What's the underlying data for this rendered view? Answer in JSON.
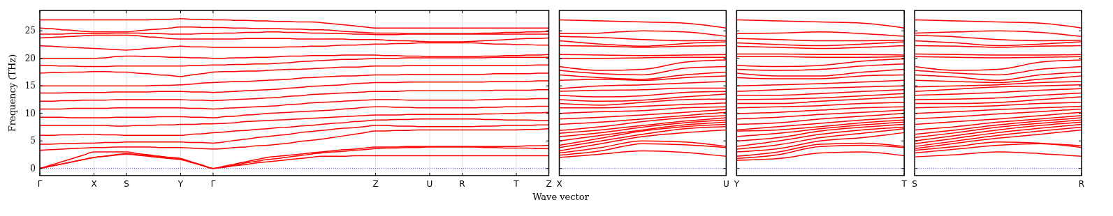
{
  "chart_data": [
    {
      "type": "line",
      "ylabel": "Frequency (THz)",
      "xlabel": "Wave vector",
      "color": "#ff0000",
      "grid": "x",
      "ylim": [
        -1.3,
        28.7
      ],
      "categories": [
        "Γ",
        null,
        null,
        null,
        null,
        "X",
        null,
        null,
        "S",
        null,
        null,
        null,
        null,
        "Y",
        null,
        null,
        "Γ",
        null,
        null,
        null,
        null,
        null,
        null,
        null,
        null,
        null,
        null,
        null,
        null,
        null,
        null,
        "Z",
        null,
        null,
        null,
        null,
        "U",
        null,
        null,
        "R",
        null,
        null,
        null,
        null,
        "T",
        null,
        null,
        "Z"
      ],
      "yticks": [
        0,
        5,
        10,
        15,
        20,
        25
      ],
      "ref_lines": [
        {
          "axis": "y",
          "value": 0,
          "color": "#0000ff",
          "line_style": "dotted"
        }
      ],
      "series": [
        {
          "values": [
            0,
            0.4,
            0.8,
            1.2,
            1.6,
            2.0,
            2.2,
            2.4,
            2.6,
            2.4,
            2.2,
            2.0,
            1.8,
            1.6,
            1.1,
            0.5,
            0,
            0.2,
            0.5,
            0.7,
            1.0,
            1.2,
            1.4,
            1.6,
            1.8,
            2.0,
            2.2,
            2.2,
            2.2,
            2.3,
            2.3,
            2.3,
            2.3,
            2.3,
            2.3,
            2.3,
            2.3,
            2.3,
            2.3,
            2.3,
            2.3,
            2.3,
            2.3,
            2.3,
            2.3,
            2.3,
            2.3,
            2.3
          ]
        },
        {
          "values": [
            0,
            0.4,
            0.8,
            1.2,
            1.6,
            2.0,
            2.2,
            2.5,
            2.7,
            2.5,
            2.3,
            2.2,
            2.0,
            1.8,
            1.2,
            0.6,
            0,
            0.3,
            0.6,
            1.0,
            1.3,
            1.6,
            1.8,
            2.1,
            2.3,
            2.6,
            2.8,
            3.0,
            3.1,
            3.3,
            3.4,
            3.6,
            3.7,
            3.7,
            3.8,
            3.8,
            3.9,
            3.9,
            3.9,
            3.9,
            3.9,
            3.8,
            3.8,
            3.7,
            3.7,
            3.7,
            3.6,
            3.6
          ]
        },
        {
          "values": [
            0,
            0.6,
            1.2,
            1.8,
            2.4,
            3.0,
            3.0,
            3.0,
            3.0,
            2.7,
            2.5,
            2.2,
            2.0,
            1.7,
            1.1,
            0.6,
            0,
            0.4,
            0.8,
            1.2,
            1.6,
            2.0,
            2.2,
            2.4,
            2.6,
            2.8,
            3.0,
            3.2,
            3.4,
            3.5,
            3.7,
            3.9,
            3.9,
            3.9,
            4.0,
            4.0,
            4.0,
            4.0,
            4.0,
            4.0,
            4.0,
            4.0,
            4.0,
            4.0,
            4.0,
            4.1,
            4.1,
            4.2
          ]
        },
        {
          "values": [
            3.3,
            3.4,
            3.5,
            3.6,
            3.7,
            3.8,
            3.8,
            3.9,
            3.9,
            3.9,
            3.9,
            3.8,
            3.8,
            3.8,
            3.7,
            3.6,
            3.5,
            3.6,
            3.8,
            3.9,
            4.1,
            4.2,
            4.4,
            4.6,
            4.9,
            5.1,
            5.3,
            5.6,
            5.9,
            6.2,
            6.5,
            6.8,
            6.8,
            6.9,
            6.9,
            7.0,
            7.0,
            7.0,
            7.0,
            7.0,
            7.0,
            7.0,
            7.0,
            7.0,
            7.0,
            7.1,
            7.1,
            7.2
          ]
        },
        {
          "values": [
            4.4,
            4.4,
            4.5,
            4.5,
            4.6,
            4.6,
            4.7,
            4.7,
            4.8,
            4.8,
            4.8,
            4.8,
            4.8,
            4.8,
            4.7,
            4.7,
            4.6,
            4.8,
            5.1,
            5.3,
            5.6,
            5.8,
            6.0,
            6.2,
            6.5,
            6.7,
            6.9,
            7.1,
            7.3,
            7.4,
            7.6,
            7.8,
            7.8,
            7.7,
            7.7,
            7.6,
            7.6,
            7.6,
            7.6,
            7.6,
            7.6,
            7.7,
            7.7,
            7.8,
            7.8,
            7.8,
            7.9,
            7.9
          ]
        },
        {
          "values": [
            6.0,
            6.0,
            6.1,
            6.1,
            6.2,
            6.2,
            6.1,
            6.1,
            6.0,
            6.0,
            6.0,
            6.0,
            6.0,
            6.0,
            6.2,
            6.3,
            6.5,
            6.6,
            6.8,
            6.9,
            7.1,
            7.2,
            7.4,
            7.5,
            7.7,
            7.8,
            8.0,
            8.2,
            8.3,
            8.5,
            8.6,
            8.8,
            8.8,
            8.9,
            8.9,
            9.0,
            9.0,
            9.0,
            9.0,
            9.0,
            9.0,
            8.9,
            8.9,
            8.8,
            8.8,
            8.8,
            8.7,
            8.7
          ]
        },
        {
          "values": [
            7.8,
            7.8,
            7.8,
            7.8,
            7.8,
            7.8,
            7.8,
            7.7,
            7.7,
            7.8,
            7.8,
            7.9,
            7.9,
            8.0,
            8.0,
            8.1,
            8.1,
            8.2,
            8.3,
            8.5,
            8.6,
            8.7,
            8.8,
            8.9,
            9.0,
            9.1,
            9.2,
            9.3,
            9.4,
            9.5,
            9.6,
            9.7,
            9.7,
            9.7,
            9.8,
            9.8,
            9.8,
            9.8,
            9.8,
            9.8,
            9.8,
            9.9,
            9.9,
            10.0,
            10.0,
            10.1,
            10.1,
            10.2
          ]
        },
        {
          "values": [
            9.3,
            9.3,
            9.3,
            9.2,
            9.2,
            9.2,
            9.2,
            9.3,
            9.3,
            9.3,
            9.3,
            9.4,
            9.4,
            9.4,
            9.3,
            9.3,
            9.2,
            9.4,
            9.5,
            9.7,
            9.8,
            10.0,
            10.1,
            10.2,
            10.3,
            10.4,
            10.5,
            10.6,
            10.8,
            10.9,
            11.1,
            11.2,
            11.2,
            11.1,
            11.1,
            11.0,
            11.0,
            11.0,
            11.0,
            11.0,
            11.0,
            11.1,
            11.1,
            11.2,
            11.2,
            11.2,
            11.3,
            11.3
          ]
        },
        {
          "values": [
            10.8,
            10.8,
            10.8,
            10.9,
            10.9,
            10.9,
            10.9,
            11.0,
            11.0,
            11.0,
            11.0,
            11.0,
            11.0,
            11.0,
            10.9,
            10.9,
            10.8,
            10.9,
            11.0,
            11.1,
            11.2,
            11.3,
            11.4,
            11.6,
            11.7,
            11.9,
            12.0,
            12.1,
            12.2,
            12.3,
            12.4,
            12.5,
            12.5,
            12.5,
            12.4,
            12.4,
            12.4,
            12.4,
            12.4,
            12.4,
            12.4,
            12.5,
            12.5,
            12.6,
            12.6,
            12.6,
            12.7,
            12.7
          ]
        },
        {
          "values": [
            12.2,
            12.2,
            12.3,
            12.3,
            12.4,
            12.4,
            12.4,
            12.5,
            12.5,
            12.5,
            12.5,
            12.5,
            12.5,
            12.5,
            12.4,
            12.4,
            12.3,
            12.4,
            12.5,
            12.6,
            12.7,
            12.8,
            12.9,
            13.1,
            13.2,
            13.4,
            13.5,
            13.6,
            13.7,
            13.8,
            13.9,
            14.0,
            14.0,
            14.0,
            14.1,
            14.1,
            14.1,
            14.1,
            14.1,
            14.1,
            14.1,
            14.1,
            14.2,
            14.2,
            14.2,
            14.2,
            14.3,
            14.3
          ]
        },
        {
          "values": [
            13.7,
            13.7,
            13.7,
            13.8,
            13.8,
            13.8,
            13.8,
            13.9,
            13.9,
            13.9,
            13.9,
            14.0,
            14.0,
            14.0,
            13.9,
            13.9,
            13.8,
            13.9,
            14.0,
            14.1,
            14.2,
            14.3,
            14.4,
            14.6,
            14.7,
            14.9,
            15.0,
            15.1,
            15.2,
            15.4,
            15.5,
            15.6,
            15.6,
            15.6,
            15.7,
            15.7,
            15.7,
            15.7,
            15.7,
            15.7,
            15.7,
            15.7,
            15.8,
            15.8,
            15.8,
            15.8,
            15.9,
            15.9
          ]
        },
        {
          "values": [
            15.0,
            15.0,
            15.0,
            15.0,
            15.0,
            15.0,
            15.0,
            15.0,
            15.0,
            15.0,
            15.0,
            15.1,
            15.1,
            15.2,
            15.3,
            15.5,
            15.6,
            15.7,
            15.8,
            15.8,
            15.9,
            16.0,
            16.1,
            16.2,
            16.4,
            16.5,
            16.6,
            16.7,
            16.8,
            16.8,
            16.9,
            17.0,
            17.0,
            17.0,
            17.1,
            17.1,
            17.1,
            17.1,
            17.1,
            17.1,
            17.1,
            17.1,
            17.2,
            17.2,
            17.2,
            17.2,
            17.3,
            17.3
          ]
        },
        {
          "values": [
            17.3,
            17.4,
            17.4,
            17.5,
            17.5,
            17.6,
            17.6,
            17.5,
            17.5,
            17.3,
            17.2,
            17.0,
            16.9,
            16.7,
            17.0,
            17.2,
            17.5,
            17.6,
            17.6,
            17.7,
            17.7,
            17.8,
            17.9,
            18.0,
            18.0,
            18.1,
            18.2,
            18.3,
            18.4,
            18.4,
            18.5,
            18.6,
            18.6,
            18.6,
            18.7,
            18.7,
            18.7,
            18.7,
            18.7,
            18.7,
            18.7,
            18.7,
            18.7,
            18.7,
            18.7,
            18.7,
            18.8,
            18.8
          ]
        },
        {
          "values": [
            18.7,
            18.7,
            18.6,
            18.6,
            18.5,
            18.5,
            18.5,
            18.6,
            18.6,
            18.6,
            18.6,
            18.6,
            18.6,
            18.6,
            18.7,
            18.7,
            18.8,
            18.8,
            18.9,
            18.9,
            19.0,
            19.0,
            19.1,
            19.2,
            19.4,
            19.5,
            19.6,
            19.7,
            19.8,
            19.8,
            19.9,
            20.0,
            20.0,
            20.0,
            20.1,
            20.1,
            20.1,
            20.1,
            20.1,
            20.1,
            20.1,
            20.1,
            20.2,
            20.2,
            20.2,
            20.2,
            20.2,
            20.2
          ]
        },
        {
          "values": [
            20.0,
            20.0,
            20.0,
            20.0,
            20.0,
            20.0,
            20.1,
            20.3,
            20.4,
            20.4,
            20.3,
            20.3,
            20.2,
            20.2,
            20.1,
            20.1,
            20.0,
            20.0,
            20.1,
            20.1,
            20.2,
            20.2,
            20.3,
            20.4,
            20.4,
            20.5,
            20.5,
            20.5,
            20.6,
            20.6,
            20.6,
            20.6,
            20.5,
            20.5,
            20.4,
            20.4,
            20.3,
            20.3,
            20.3,
            20.3,
            20.3,
            20.4,
            20.4,
            20.5,
            20.5,
            20.6,
            20.6,
            20.7
          ]
        },
        {
          "values": [
            22.3,
            22.2,
            22.1,
            22.0,
            21.9,
            21.8,
            21.7,
            21.6,
            21.5,
            21.6,
            21.8,
            21.9,
            22.1,
            22.2,
            22.1,
            22.1,
            22.0,
            22.0,
            22.0,
            22.0,
            22.0,
            22.0,
            22.0,
            22.1,
            22.1,
            22.2,
            22.2,
            22.3,
            22.4,
            22.4,
            22.5,
            22.6,
            22.6,
            22.7,
            22.7,
            22.8,
            22.8,
            22.8,
            22.8,
            22.8,
            22.8,
            22.7,
            22.6,
            22.6,
            22.5,
            22.5,
            22.4,
            22.4
          ]
        },
        {
          "values": [
            23.7,
            23.8,
            23.9,
            24.0,
            24.1,
            24.2,
            24.2,
            24.2,
            24.2,
            24.1,
            23.9,
            23.8,
            23.6,
            23.5,
            23.5,
            23.5,
            23.5,
            23.5,
            23.5,
            23.6,
            23.6,
            23.6,
            23.6,
            23.6,
            23.5,
            23.5,
            23.5,
            23.5,
            23.5,
            23.4,
            23.4,
            23.4,
            23.3,
            23.2,
            23.2,
            23.1,
            23.0,
            23.0,
            23.0,
            23.0,
            23.1,
            23.2,
            23.3,
            23.4,
            23.5,
            23.6,
            23.6,
            23.7
          ]
        },
        {
          "values": [
            24.4,
            24.4,
            24.4,
            24.5,
            24.5,
            24.5,
            24.5,
            24.6,
            24.6,
            24.6,
            24.5,
            24.5,
            24.4,
            24.4,
            24.4,
            24.5,
            24.5,
            24.6,
            24.6,
            24.7,
            24.7,
            24.8,
            24.8,
            24.7,
            24.7,
            24.6,
            24.6,
            24.5,
            24.5,
            24.4,
            24.4,
            24.3,
            24.3,
            24.3,
            24.4,
            24.4,
            24.4,
            24.4,
            24.4,
            24.4,
            24.4,
            24.4,
            24.4,
            24.4,
            24.4,
            24.4,
            24.4,
            24.4
          ]
        },
        {
          "values": [
            25.5,
            25.4,
            25.2,
            25.1,
            24.9,
            24.8,
            24.8,
            24.8,
            24.8,
            25.0,
            25.2,
            25.3,
            25.5,
            25.7,
            25.7,
            25.6,
            25.6,
            25.6,
            25.5,
            25.5,
            25.4,
            25.4,
            25.4,
            25.3,
            25.3,
            25.2,
            25.2,
            25.1,
            24.9,
            24.8,
            24.7,
            24.6,
            24.6,
            24.6,
            24.5,
            24.5,
            24.5,
            24.5,
            24.5,
            24.5,
            24.5,
            24.6,
            24.6,
            24.7,
            24.7,
            24.8,
            24.8,
            24.9
          ]
        },
        {
          "values": [
            27.0,
            27.0,
            27.0,
            27.0,
            27.0,
            27.0,
            27.0,
            27.0,
            27.0,
            27.0,
            27.0,
            27.1,
            27.1,
            27.2,
            27.1,
            27.1,
            27.0,
            27.0,
            26.9,
            26.9,
            26.8,
            26.8,
            26.7,
            26.7,
            26.6,
            26.6,
            26.5,
            26.3,
            26.1,
            25.9,
            25.7,
            25.5,
            25.5,
            25.5,
            25.5,
            25.5,
            25.5,
            25.5,
            25.5,
            25.5,
            25.5,
            25.5,
            25.5,
            25.5,
            25.5,
            25.5,
            25.5,
            25.5
          ]
        }
      ]
    },
    {
      "type": "line",
      "color": "#ff0000",
      "tick_labels": "x",
      "ylim": [
        -1.3,
        28.7
      ],
      "categories": [
        "X",
        null,
        null,
        null,
        "U"
      ],
      "yticks": [
        0,
        5,
        10,
        15,
        20,
        25
      ],
      "ref_lines": [
        {
          "axis": "y",
          "value": 0,
          "color": "#0000ff",
          "line_style": "dotted"
        }
      ],
      "series": [
        {
          "values": [
            2.0,
            2.6,
            3.2,
            2.9,
            2.2
          ]
        },
        {
          "values": [
            2.4,
            3.2,
            4.5,
            4.3,
            3.8
          ]
        },
        {
          "values": [
            2.8,
            3.8,
            5.0,
            4.8,
            4.0
          ]
        },
        {
          "values": [
            3.2,
            4.5,
            5.8,
            6.5,
            7.0
          ]
        },
        {
          "values": [
            3.8,
            5.0,
            6.2,
            7.2,
            7.6
          ]
        },
        {
          "values": [
            4.2,
            5.5,
            6.8,
            7.6,
            8.0
          ]
        },
        {
          "values": [
            5.0,
            6.0,
            7.0,
            7.9,
            8.4
          ]
        },
        {
          "values": [
            5.8,
            6.5,
            7.5,
            8.3,
            8.8
          ]
        },
        {
          "values": [
            6.4,
            7.0,
            7.8,
            8.6,
            9.2
          ]
        },
        {
          "values": [
            6.9,
            7.6,
            8.5,
            9.2,
            9.6
          ]
        },
        {
          "values": [
            8.0,
            8.4,
            9.0,
            9.6,
            10.2
          ]
        },
        {
          "values": [
            9.0,
            9.3,
            9.7,
            10.2,
            10.7
          ]
        },
        {
          "values": [
            10.0,
            10.3,
            10.5,
            11.0,
            11.2
          ]
        },
        {
          "values": [
            11.0,
            11.0,
            11.3,
            11.6,
            11.9
          ]
        },
        {
          "values": [
            11.8,
            11.5,
            12.0,
            12.5,
            12.6
          ]
        },
        {
          "values": [
            12.5,
            12.2,
            12.4,
            13.0,
            13.5
          ]
        },
        {
          "values": [
            13.3,
            13.0,
            13.2,
            13.8,
            14.0
          ]
        },
        {
          "values": [
            14.0,
            14.2,
            14.3,
            14.6,
            14.6
          ]
        },
        {
          "values": [
            14.5,
            15.0,
            15.2,
            15.5,
            15.8
          ]
        },
        {
          "values": [
            16.0,
            16.2,
            16.0,
            16.5,
            16.8
          ]
        },
        {
          "values": [
            17.0,
            16.5,
            16.2,
            17.0,
            17.5
          ]
        },
        {
          "values": [
            17.8,
            17.2,
            17.0,
            18.2,
            18.5
          ]
        },
        {
          "values": [
            18.5,
            17.8,
            18.0,
            19.3,
            19.7
          ]
        },
        {
          "values": [
            20.0,
            20.0,
            20.1,
            20.2,
            20.2
          ]
        },
        {
          "values": [
            20.7,
            20.6,
            20.5,
            20.6,
            20.7
          ]
        },
        {
          "values": [
            22.3,
            22.2,
            22.0,
            22.2,
            22.3
          ]
        },
        {
          "values": [
            23.2,
            22.6,
            22.2,
            22.7,
            23.0
          ]
        },
        {
          "values": [
            24.0,
            23.8,
            23.4,
            23.2,
            23.3
          ]
        },
        {
          "values": [
            24.5,
            24.6,
            25.0,
            24.8,
            24.0
          ]
        },
        {
          "values": [
            27.0,
            26.8,
            26.6,
            26.4,
            25.5
          ]
        }
      ]
    },
    {
      "type": "line",
      "color": "#ff0000",
      "tick_labels": "x",
      "ylim": [
        -1.3,
        28.7
      ],
      "categories": [
        "Y",
        null,
        null,
        null,
        "T"
      ],
      "yticks": [
        0,
        5,
        10,
        15,
        20,
        25
      ],
      "ref_lines": [
        {
          "axis": "y",
          "value": 0,
          "color": "#0000ff",
          "line_style": "dotted"
        }
      ],
      "series": [
        {
          "values": [
            1.5,
            1.8,
            2.8,
            3.0,
            2.3
          ]
        },
        {
          "values": [
            1.8,
            2.5,
            4.0,
            4.2,
            3.8
          ]
        },
        {
          "values": [
            2.2,
            3.0,
            4.4,
            4.6,
            4.0
          ]
        },
        {
          "values": [
            3.0,
            3.6,
            5.0,
            5.6,
            6.5
          ]
        },
        {
          "values": [
            3.5,
            4.3,
            5.6,
            6.4,
            7.2
          ]
        },
        {
          "values": [
            4.0,
            5.0,
            6.2,
            7.0,
            7.5
          ]
        },
        {
          "values": [
            5.0,
            5.6,
            6.8,
            7.5,
            8.0
          ]
        },
        {
          "values": [
            5.8,
            6.4,
            7.2,
            7.9,
            8.4
          ]
        },
        {
          "values": [
            6.8,
            7.0,
            7.6,
            8.3,
            8.8
          ]
        },
        {
          "values": [
            7.0,
            7.6,
            8.2,
            8.8,
            9.3
          ]
        },
        {
          "values": [
            8.0,
            8.3,
            9.0,
            9.5,
            10.0
          ]
        },
        {
          "values": [
            9.0,
            9.3,
            9.8,
            10.2,
            10.6
          ]
        },
        {
          "values": [
            10.0,
            10.2,
            10.6,
            11.0,
            11.2
          ]
        },
        {
          "values": [
            11.0,
            11.2,
            11.4,
            11.8,
            12.0
          ]
        },
        {
          "values": [
            11.8,
            11.8,
            12.2,
            12.6,
            13.0
          ]
        },
        {
          "values": [
            12.5,
            12.6,
            12.8,
            13.2,
            13.6
          ]
        },
        {
          "values": [
            13.3,
            13.3,
            13.6,
            14.0,
            14.3
          ]
        },
        {
          "values": [
            14.0,
            14.3,
            14.6,
            14.8,
            15.0
          ]
        },
        {
          "values": [
            15.0,
            15.2,
            15.4,
            15.7,
            16.0
          ]
        },
        {
          "values": [
            16.5,
            16.3,
            16.3,
            16.8,
            17.0
          ]
        },
        {
          "values": [
            17.3,
            16.8,
            16.8,
            17.5,
            18.0
          ]
        },
        {
          "values": [
            18.0,
            17.8,
            18.0,
            18.6,
            19.0
          ]
        },
        {
          "values": [
            18.7,
            18.5,
            18.7,
            19.5,
            19.9
          ]
        },
        {
          "values": [
            20.3,
            20.3,
            20.2,
            20.2,
            20.3
          ]
        },
        {
          "values": [
            20.8,
            20.8,
            20.7,
            20.7,
            20.6
          ]
        },
        {
          "values": [
            22.2,
            22.0,
            21.8,
            22.0,
            22.3
          ]
        },
        {
          "values": [
            22.8,
            22.5,
            22.3,
            22.6,
            23.0
          ]
        },
        {
          "values": [
            23.6,
            23.4,
            23.2,
            23.2,
            23.3
          ]
        },
        {
          "values": [
            24.5,
            24.6,
            24.8,
            24.5,
            24.0
          ]
        },
        {
          "values": [
            27.0,
            26.8,
            26.6,
            26.4,
            25.5
          ]
        }
      ]
    },
    {
      "type": "line",
      "color": "#ff0000",
      "tick_labels": "x",
      "ylim": [
        -1.3,
        28.7
      ],
      "categories": [
        "S",
        null,
        null,
        null,
        "R"
      ],
      "yticks": [
        0,
        5,
        10,
        15,
        20,
        25
      ],
      "ref_lines": [
        {
          "axis": "y",
          "value": 0,
          "color": "#0000ff",
          "line_style": "dotted"
        }
      ],
      "series": [
        {
          "values": [
            2.1,
            2.5,
            3.0,
            2.7,
            2.2
          ]
        },
        {
          "values": [
            2.8,
            3.5,
            4.2,
            4.5,
            3.8
          ]
        },
        {
          "values": [
            3.3,
            4.0,
            4.8,
            4.6,
            4.1
          ]
        },
        {
          "values": [
            3.6,
            4.6,
            5.5,
            6.2,
            7.0
          ]
        },
        {
          "values": [
            4.0,
            5.0,
            6.0,
            6.8,
            7.5
          ]
        },
        {
          "values": [
            4.5,
            5.5,
            6.5,
            7.3,
            8.0
          ]
        },
        {
          "values": [
            5.0,
            6.0,
            7.0,
            7.8,
            8.4
          ]
        },
        {
          "values": [
            5.6,
            6.5,
            7.5,
            8.2,
            8.8
          ]
        },
        {
          "values": [
            6.2,
            7.0,
            7.9,
            8.6,
            9.2
          ]
        },
        {
          "values": [
            7.0,
            7.6,
            8.4,
            9.0,
            9.6
          ]
        },
        {
          "values": [
            8.0,
            8.5,
            9.0,
            9.6,
            10.2
          ]
        },
        {
          "values": [
            9.0,
            9.4,
            9.9,
            10.3,
            10.8
          ]
        },
        {
          "values": [
            10.0,
            10.3,
            10.7,
            11.0,
            11.3
          ]
        },
        {
          "values": [
            11.0,
            11.2,
            11.4,
            11.8,
            12.0
          ]
        },
        {
          "values": [
            11.8,
            11.8,
            12.0,
            12.5,
            13.0
          ]
        },
        {
          "values": [
            12.5,
            12.6,
            12.8,
            13.3,
            13.7
          ]
        },
        {
          "values": [
            13.3,
            13.5,
            13.8,
            14.2,
            14.5
          ]
        },
        {
          "values": [
            14.0,
            14.4,
            14.8,
            15.0,
            15.2
          ]
        },
        {
          "values": [
            14.8,
            15.0,
            15.2,
            15.6,
            15.8
          ]
        },
        {
          "values": [
            16.0,
            15.8,
            15.6,
            16.2,
            16.8
          ]
        },
        {
          "values": [
            17.0,
            16.6,
            16.0,
            17.0,
            17.5
          ]
        },
        {
          "values": [
            17.8,
            17.3,
            17.0,
            18.0,
            18.5
          ]
        },
        {
          "values": [
            18.5,
            17.8,
            18.0,
            19.3,
            19.7
          ]
        },
        {
          "values": [
            20.3,
            20.2,
            20.1,
            20.2,
            20.3
          ]
        },
        {
          "values": [
            20.8,
            20.7,
            20.6,
            20.6,
            20.7
          ]
        },
        {
          "values": [
            22.3,
            22.2,
            22.0,
            22.2,
            22.3
          ]
        },
        {
          "values": [
            23.2,
            22.8,
            22.3,
            22.6,
            23.0
          ]
        },
        {
          "values": [
            24.2,
            23.9,
            23.4,
            23.2,
            23.3
          ]
        },
        {
          "values": [
            24.6,
            24.8,
            25.0,
            24.7,
            24.0
          ]
        },
        {
          "values": [
            27.0,
            26.8,
            26.6,
            26.4,
            25.5
          ]
        }
      ]
    }
  ]
}
